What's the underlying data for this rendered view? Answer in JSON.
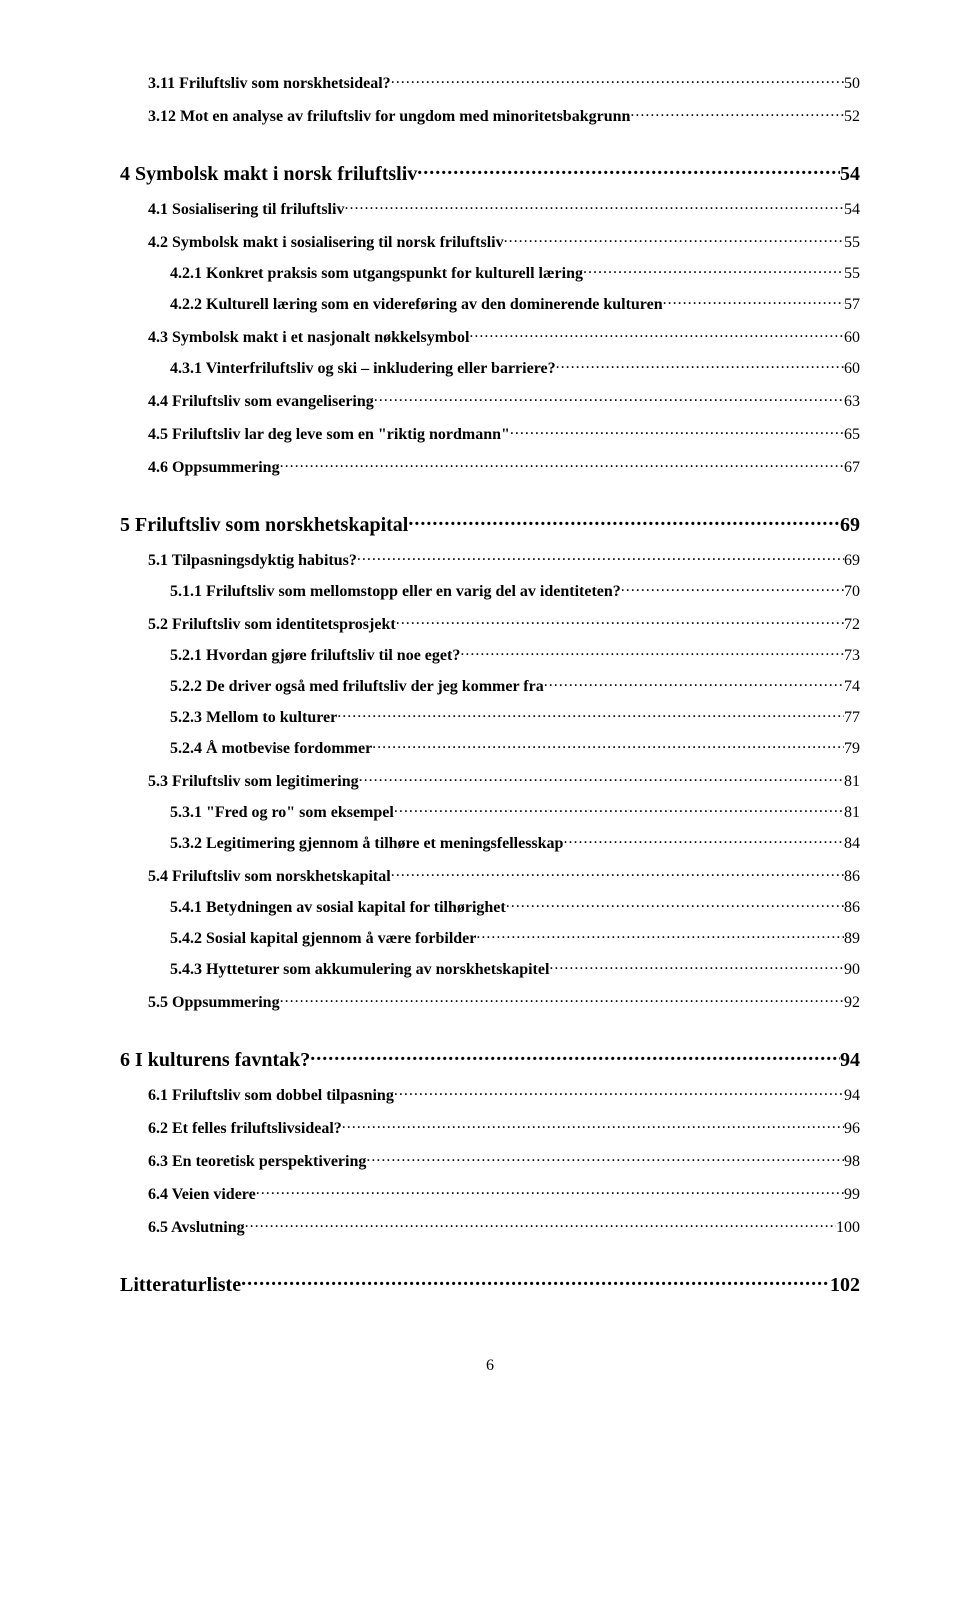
{
  "toc": [
    {
      "cls": "lvl2b",
      "label": "3.11   Friluftsliv som norskhetsideal?",
      "page": "50",
      "thin": true
    },
    {
      "cls": "lvl2b",
      "label": "3.12   Mot en analyse av friluftsliv for ungdom med minoritetsbakgrunn",
      "page": "52",
      "thin": true
    },
    {
      "cls": "lvl1",
      "label": "4   Symbolsk makt i norsk friluftsliv",
      "page": "54",
      "thin": false
    },
    {
      "cls": "lvl2",
      "label": "4.1    Sosialisering til friluftsliv",
      "page": "54",
      "thin": true
    },
    {
      "cls": "lvl2",
      "label": "4.2    Symbolsk makt i sosialisering til norsk friluftsliv",
      "page": "55",
      "thin": true
    },
    {
      "cls": "lvl3",
      "label": "4.2.1 Konkret praksis som utgangspunkt for kulturell læring",
      "page": "55",
      "thin": true
    },
    {
      "cls": "lvl3",
      "label": "4.2.2 Kulturell læring som en videreføring av den dominerende kulturen",
      "page": "57",
      "thin": true
    },
    {
      "cls": "lvl2",
      "label": "4.3    Symbolsk makt i et nasjonalt nøkkelsymbol",
      "page": "60",
      "thin": true
    },
    {
      "cls": "lvl3",
      "label": "4.3.1 Vinterfriluftsliv og ski – inkludering eller barriere?",
      "page": "60",
      "thin": true
    },
    {
      "cls": "lvl2",
      "label": "4.4    Friluftsliv som evangelisering",
      "page": "63",
      "thin": true
    },
    {
      "cls": "lvl2",
      "label": "4.5    Friluftsliv lar deg leve som en \"riktig nordmann\"",
      "page": "65",
      "thin": true
    },
    {
      "cls": "lvl2",
      "label": "4.6    Oppsummering",
      "page": "67",
      "thin": true
    },
    {
      "cls": "lvl1",
      "label": "5   Friluftsliv som norskhetskapital",
      "page": "69",
      "thin": false
    },
    {
      "cls": "lvl2",
      "label": "5.1    Tilpasningsdyktig habitus?",
      "page": "69",
      "thin": true
    },
    {
      "cls": "lvl3",
      "label": "5.1.1 Friluftsliv som mellomstopp eller en varig del av identiteten?",
      "page": "70",
      "thin": true
    },
    {
      "cls": "lvl2",
      "label": "5.2    Friluftsliv som identitetsprosjekt",
      "page": "72",
      "thin": true
    },
    {
      "cls": "lvl3",
      "label": "5.2.1 Hvordan gjøre friluftsliv til noe eget?",
      "page": "73",
      "thin": true
    },
    {
      "cls": "lvl3",
      "label": "5.2.2 De driver også med friluftsliv der jeg kommer fra",
      "page": "74",
      "thin": true
    },
    {
      "cls": "lvl3",
      "label": "5.2.3 Mellom to kulturer",
      "page": "77",
      "thin": true
    },
    {
      "cls": "lvl3",
      "label": "5.2.4 Å motbevise fordommer",
      "page": "79",
      "thin": true
    },
    {
      "cls": "lvl2",
      "label": "5.3    Friluftsliv som legitimering",
      "page": "81",
      "thin": true
    },
    {
      "cls": "lvl3",
      "label": "5.3.1 \"Fred og ro\" som eksempel",
      "page": "81",
      "thin": true
    },
    {
      "cls": "lvl3",
      "label": "5.3.2 Legitimering gjennom å tilhøre et meningsfellesskap",
      "page": "84",
      "thin": true
    },
    {
      "cls": "lvl2",
      "label": "5.4    Friluftsliv som norskhetskapital",
      "page": "86",
      "thin": true
    },
    {
      "cls": "lvl3",
      "label": "5.4.1 Betydningen av sosial kapital for tilhørighet",
      "page": "86",
      "thin": true
    },
    {
      "cls": "lvl3",
      "label": "5.4.2 Sosial kapital gjennom å være forbilder",
      "page": "89",
      "thin": true
    },
    {
      "cls": "lvl3",
      "label": "5.4.3 Hytteturer som akkumulering av norskhetskapitel",
      "page": "90",
      "thin": true
    },
    {
      "cls": "lvl2",
      "label": "5.5    Oppsummering",
      "page": "92",
      "thin": true
    },
    {
      "cls": "lvl1",
      "label": "6   I kulturens favntak?",
      "page": "94",
      "thin": false
    },
    {
      "cls": "lvl2",
      "label": "6.1    Friluftsliv som dobbel tilpasning",
      "page": "94",
      "thin": true
    },
    {
      "cls": "lvl2",
      "label": "6.2    Et felles friluftslivsideal?",
      "page": "96",
      "thin": true
    },
    {
      "cls": "lvl2",
      "label": "6.3    En teoretisk perspektivering",
      "page": "98",
      "thin": true
    },
    {
      "cls": "lvl2",
      "label": "6.4    Veien videre",
      "page": "99",
      "thin": true
    },
    {
      "cls": "lvl2",
      "label": "6.5    Avslutning",
      "page": "100",
      "thin": true
    },
    {
      "cls": "lvl1",
      "label": "Litteraturliste",
      "page": "102",
      "thin": false
    }
  ],
  "pageNumber": "6"
}
